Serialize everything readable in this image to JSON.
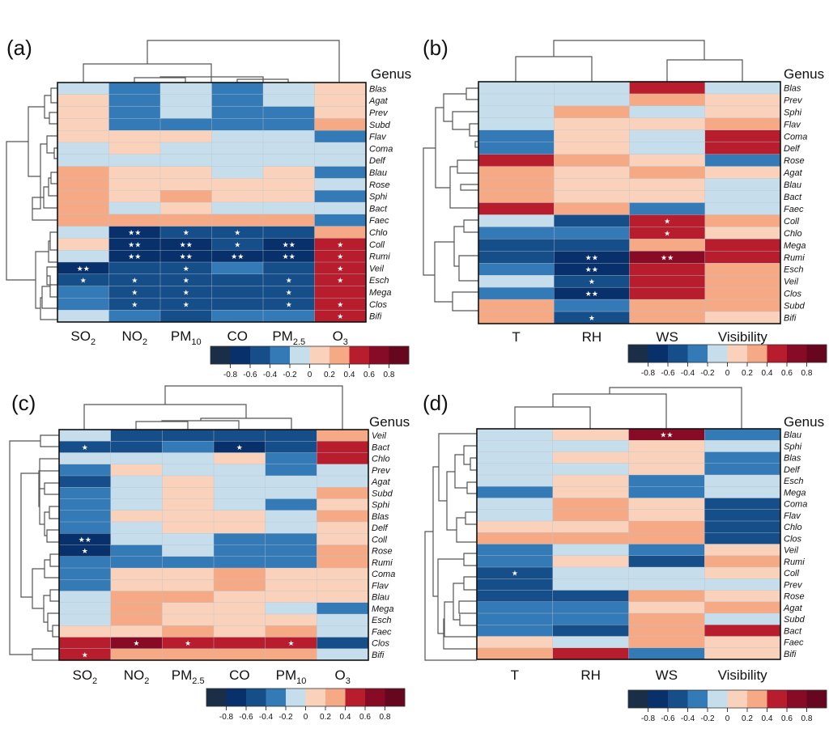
{
  "chart_data": [
    {
      "type": "heatmap",
      "panel_label": "(a)",
      "genus_title": "Genus",
      "columns": [
        {
          "base": "SO",
          "sub": "2"
        },
        {
          "base": "NO",
          "sub": "2"
        },
        {
          "base": "PM",
          "sub": "10"
        },
        {
          "base": "CO",
          "sub": ""
        },
        {
          "base": "PM",
          "sub": "2.5"
        },
        {
          "base": "O",
          "sub": "3"
        }
      ],
      "rows": [
        "Blas",
        "Agat",
        "Prev",
        "Subd",
        "Flav",
        "Coma",
        "Delf",
        "Blau",
        "Rose",
        "Sphi",
        "Bact",
        "Faec",
        "Chlo",
        "Coll",
        "Rumi",
        "Veil",
        "Esch",
        "Mega",
        "Clos",
        "Bifi"
      ],
      "values": [
        [
          -0.1,
          -0.3,
          -0.1,
          -0.3,
          -0.1,
          0.1
        ],
        [
          0.1,
          -0.3,
          -0.1,
          -0.3,
          -0.1,
          0.1
        ],
        [
          0.1,
          -0.3,
          -0.1,
          -0.3,
          -0.3,
          0.1
        ],
        [
          0.1,
          -0.3,
          -0.3,
          -0.3,
          -0.3,
          0.3
        ],
        [
          0.1,
          0.1,
          0.1,
          -0.1,
          -0.1,
          -0.3
        ],
        [
          -0.1,
          0.1,
          -0.1,
          -0.1,
          -0.1,
          -0.1
        ],
        [
          -0.1,
          -0.1,
          -0.1,
          -0.1,
          -0.1,
          -0.1
        ],
        [
          0.3,
          0.1,
          0.1,
          -0.1,
          0.1,
          -0.3
        ],
        [
          0.3,
          0.1,
          0.1,
          0.1,
          0.1,
          -0.1
        ],
        [
          0.3,
          0.1,
          0.3,
          0.1,
          0.1,
          -0.3
        ],
        [
          0.3,
          -0.1,
          0.1,
          -0.1,
          -0.1,
          -0.1
        ],
        [
          0.3,
          0.3,
          0.3,
          0.3,
          0.3,
          -0.3
        ],
        [
          -0.1,
          -0.7,
          -0.5,
          -0.5,
          -0.5,
          0.3
        ],
        [
          0.1,
          -0.7,
          -0.7,
          -0.5,
          -0.7,
          0.5
        ],
        [
          -0.1,
          -0.7,
          -0.7,
          -0.7,
          -0.7,
          0.5
        ],
        [
          -0.7,
          -0.5,
          -0.5,
          -0.3,
          -0.5,
          0.5
        ],
        [
          -0.5,
          -0.5,
          -0.5,
          -0.5,
          -0.5,
          0.5
        ],
        [
          -0.3,
          -0.5,
          -0.5,
          -0.5,
          -0.5,
          0.5
        ],
        [
          -0.3,
          -0.5,
          -0.5,
          -0.5,
          -0.5,
          0.5
        ],
        [
          -0.1,
          -0.3,
          -0.5,
          -0.3,
          -0.3,
          0.5
        ]
      ],
      "significance": [
        [
          "",
          "",
          "",
          "",
          "",
          ""
        ],
        [
          "",
          "",
          "",
          "",
          "",
          ""
        ],
        [
          "",
          "",
          "",
          "",
          "",
          ""
        ],
        [
          "",
          "",
          "",
          "",
          "",
          ""
        ],
        [
          "",
          "",
          "",
          "",
          "",
          ""
        ],
        [
          "",
          "",
          "",
          "",
          "",
          ""
        ],
        [
          "",
          "",
          "",
          "",
          "",
          ""
        ],
        [
          "",
          "",
          "",
          "",
          "",
          ""
        ],
        [
          "",
          "",
          "",
          "",
          "",
          ""
        ],
        [
          "",
          "",
          "",
          "",
          "",
          ""
        ],
        [
          "",
          "",
          "",
          "",
          "",
          ""
        ],
        [
          "",
          "",
          "",
          "",
          "",
          ""
        ],
        [
          "",
          "**",
          "*",
          "*",
          "",
          ""
        ],
        [
          "",
          "**",
          "**",
          "*",
          "**",
          "*"
        ],
        [
          "",
          "**",
          "**",
          "**",
          "**",
          "*"
        ],
        [
          "**",
          "",
          "*",
          "",
          "",
          "*"
        ],
        [
          "*",
          "*",
          "*",
          "",
          "*",
          "*"
        ],
        [
          "",
          "*",
          "*",
          "",
          "*",
          ""
        ],
        [
          "",
          "*",
          "*",
          "",
          "*",
          "*"
        ],
        [
          "",
          "",
          "",
          "",
          "",
          "*"
        ]
      ],
      "legend": {
        "ticks": [
          "-0.8",
          "-0.6",
          "-0.4",
          "-0.2",
          "0",
          "0.2",
          "0.4",
          "0.6",
          "0.8"
        ],
        "range": [
          -1,
          1
        ]
      }
    },
    {
      "type": "heatmap",
      "panel_label": "(b)",
      "genus_title": "Genus",
      "columns": [
        {
          "base": "T",
          "sub": ""
        },
        {
          "base": "RH",
          "sub": ""
        },
        {
          "base": "WS",
          "sub": ""
        },
        {
          "base": "Visibility",
          "sub": ""
        }
      ],
      "rows": [
        "Blas",
        "Prev",
        "Sphi",
        "Flav",
        "Coma",
        "Delf",
        "Rose",
        "Agat",
        "Blau",
        "Bact",
        "Faec",
        "Coll",
        "Chlo",
        "Mega",
        "Rumi",
        "Esch",
        "Veil",
        "Clos",
        "Subd",
        "Bifi"
      ],
      "values": [
        [
          -0.1,
          -0.1,
          0.5,
          -0.1
        ],
        [
          -0.1,
          -0.1,
          0.3,
          0.1
        ],
        [
          -0.1,
          0.3,
          -0.1,
          0.1
        ],
        [
          -0.1,
          0.1,
          0.1,
          0.3
        ],
        [
          -0.3,
          0.1,
          -0.1,
          0.5
        ],
        [
          -0.3,
          0.1,
          -0.1,
          0.5
        ],
        [
          0.5,
          0.3,
          0.1,
          -0.3
        ],
        [
          0.3,
          0.1,
          0.3,
          0.1
        ],
        [
          0.3,
          0.1,
          0.1,
          -0.1
        ],
        [
          0.3,
          0.1,
          0.1,
          -0.1
        ],
        [
          0.5,
          0.3,
          -0.3,
          -0.1
        ],
        [
          -0.1,
          -0.5,
          0.5,
          0.3
        ],
        [
          -0.3,
          -0.3,
          0.5,
          0.1
        ],
        [
          -0.5,
          -0.5,
          0.3,
          0.5
        ],
        [
          -0.5,
          -0.7,
          0.7,
          0.5
        ],
        [
          -0.3,
          -0.7,
          0.5,
          0.3
        ],
        [
          -0.1,
          -0.5,
          0.5,
          0.3
        ],
        [
          -0.3,
          -0.7,
          0.5,
          0.3
        ],
        [
          0.3,
          -0.3,
          0.3,
          0.3
        ],
        [
          0.3,
          -0.5,
          0.3,
          0.1
        ]
      ],
      "significance": [
        [
          "",
          "",
          "",
          ""
        ],
        [
          "",
          "",
          "",
          ""
        ],
        [
          "",
          "",
          "",
          ""
        ],
        [
          "",
          "",
          "",
          ""
        ],
        [
          "",
          "",
          "",
          ""
        ],
        [
          "",
          "",
          "",
          ""
        ],
        [
          "",
          "",
          "",
          ""
        ],
        [
          "",
          "",
          "",
          ""
        ],
        [
          "",
          "",
          "",
          ""
        ],
        [
          "",
          "",
          "",
          ""
        ],
        [
          "",
          "",
          "",
          ""
        ],
        [
          "",
          "",
          "*",
          ""
        ],
        [
          "",
          "",
          "*",
          ""
        ],
        [
          "",
          "",
          "",
          ""
        ],
        [
          "",
          "**",
          "**",
          ""
        ],
        [
          "",
          "**",
          "",
          ""
        ],
        [
          "",
          "*",
          "",
          ""
        ],
        [
          "",
          "**",
          "",
          ""
        ],
        [
          "",
          "",
          "",
          ""
        ],
        [
          "",
          "*",
          "",
          ""
        ]
      ],
      "legend": {
        "ticks": [
          "-0.8",
          "-0.6",
          "-0.4",
          "-0.2",
          "0",
          "0.2",
          "0.4",
          "0.6",
          "0.8"
        ],
        "range": [
          -1,
          1
        ]
      }
    },
    {
      "type": "heatmap",
      "panel_label": "(c)",
      "genus_title": "Genus",
      "columns": [
        {
          "base": "SO",
          "sub": "2"
        },
        {
          "base": "NO",
          "sub": "2"
        },
        {
          "base": "PM",
          "sub": "2.5"
        },
        {
          "base": "CO",
          "sub": ""
        },
        {
          "base": "PM",
          "sub": "10"
        },
        {
          "base": "O",
          "sub": "3"
        }
      ],
      "rows": [
        "Veil",
        "Bact",
        "Chlo",
        "Prev",
        "Agat",
        "Subd",
        "Sphi",
        "Blas",
        "Delf",
        "Coll",
        "Rose",
        "Rumi",
        "Coma",
        "Flav",
        "Blau",
        "Mega",
        "Esch",
        "Faec",
        "Clos",
        "Bifi"
      ],
      "values": [
        [
          -0.1,
          -0.5,
          -0.5,
          -0.5,
          -0.5,
          0.3
        ],
        [
          -0.5,
          -0.5,
          -0.3,
          -0.7,
          -0.5,
          0.5
        ],
        [
          -0.1,
          -0.1,
          -0.1,
          0.1,
          -0.3,
          0.5
        ],
        [
          -0.3,
          0.1,
          -0.1,
          -0.1,
          -0.3,
          -0.1
        ],
        [
          -0.5,
          -0.1,
          0.1,
          -0.1,
          -0.1,
          -0.1
        ],
        [
          -0.3,
          -0.1,
          0.1,
          -0.1,
          -0.1,
          0.3
        ],
        [
          -0.3,
          -0.1,
          0.1,
          -0.1,
          -0.3,
          0.1
        ],
        [
          -0.3,
          0.1,
          0.1,
          0.1,
          -0.1,
          0.3
        ],
        [
          -0.3,
          -0.1,
          0.1,
          0.1,
          -0.1,
          0.1
        ],
        [
          -0.7,
          -0.1,
          -0.1,
          -0.3,
          -0.3,
          0.1
        ],
        [
          -0.7,
          -0.3,
          -0.1,
          -0.3,
          -0.3,
          0.3
        ],
        [
          -0.3,
          -0.3,
          -0.3,
          -0.3,
          -0.3,
          0.3
        ],
        [
          -0.3,
          0.1,
          0.1,
          0.3,
          0.1,
          0.1
        ],
        [
          -0.3,
          0.1,
          0.1,
          0.3,
          0.1,
          0.1
        ],
        [
          -0.1,
          0.3,
          0.3,
          0.1,
          0.1,
          0.1
        ],
        [
          -0.1,
          0.3,
          0.1,
          0.1,
          -0.1,
          -0.3
        ],
        [
          -0.1,
          0.3,
          0.1,
          0.1,
          0.1,
          -0.1
        ],
        [
          0.1,
          0.1,
          0.3,
          0.1,
          0.3,
          -0.1
        ],
        [
          0.5,
          0.7,
          0.5,
          0.5,
          0.5,
          -0.5
        ],
        [
          0.5,
          0.3,
          0.3,
          0.3,
          0.3,
          -0.1
        ]
      ],
      "significance": [
        [
          "",
          "",
          "",
          "",
          "",
          ""
        ],
        [
          "*",
          "",
          "",
          "*",
          "",
          ""
        ],
        [
          "",
          "",
          "",
          "",
          "",
          ""
        ],
        [
          "",
          "",
          "",
          "",
          "",
          ""
        ],
        [
          "",
          "",
          "",
          "",
          "",
          ""
        ],
        [
          "",
          "",
          "",
          "",
          "",
          ""
        ],
        [
          "",
          "",
          "",
          "",
          "",
          ""
        ],
        [
          "",
          "",
          "",
          "",
          "",
          ""
        ],
        [
          "",
          "",
          "",
          "",
          "",
          ""
        ],
        [
          "**",
          "",
          "",
          "",
          "",
          ""
        ],
        [
          "*",
          "",
          "",
          "",
          "",
          ""
        ],
        [
          "",
          "",
          "",
          "",
          "",
          ""
        ],
        [
          "",
          "",
          "",
          "",
          "",
          ""
        ],
        [
          "",
          "",
          "",
          "",
          "",
          ""
        ],
        [
          "",
          "",
          "",
          "",
          "",
          ""
        ],
        [
          "",
          "",
          "",
          "",
          "",
          ""
        ],
        [
          "",
          "",
          "",
          "",
          "",
          ""
        ],
        [
          "",
          "",
          "",
          "",
          "",
          ""
        ],
        [
          "",
          "*",
          "*",
          "",
          "*",
          ""
        ],
        [
          "*",
          "",
          "",
          "",
          "",
          ""
        ]
      ],
      "legend": {
        "ticks": [
          "-0.8",
          "-0.6",
          "-0.4",
          "-0.2",
          "0",
          "0.2",
          "0.4",
          "0.6",
          "0.8"
        ],
        "range": [
          -1,
          1
        ]
      }
    },
    {
      "type": "heatmap",
      "panel_label": "(d)",
      "genus_title": "Genus",
      "columns": [
        {
          "base": "T",
          "sub": ""
        },
        {
          "base": "RH",
          "sub": ""
        },
        {
          "base": "WS",
          "sub": ""
        },
        {
          "base": "Visibility",
          "sub": ""
        }
      ],
      "rows": [
        "Blau",
        "Sphi",
        "Blas",
        "Delf",
        "Esch",
        "Mega",
        "Coma",
        "Flav",
        "Chlo",
        "Clos",
        "Veil",
        "Rumi",
        "Coll",
        "Prev",
        "Rose",
        "Agat",
        "Subd",
        "Bact",
        "Faec",
        "Bifi"
      ],
      "values": [
        [
          -0.1,
          0.1,
          0.7,
          -0.3
        ],
        [
          -0.1,
          -0.1,
          0.1,
          -0.1
        ],
        [
          -0.1,
          0.1,
          0.1,
          -0.3
        ],
        [
          -0.1,
          -0.1,
          0.1,
          -0.3
        ],
        [
          -0.1,
          0.1,
          -0.3,
          -0.1
        ],
        [
          -0.3,
          0.1,
          -0.3,
          -0.1
        ],
        [
          -0.1,
          0.3,
          0.1,
          -0.5
        ],
        [
          -0.1,
          0.3,
          0.1,
          -0.5
        ],
        [
          0.1,
          0.1,
          0.3,
          -0.5
        ],
        [
          0.3,
          0.3,
          0.3,
          -0.5
        ],
        [
          -0.3,
          -0.1,
          -0.3,
          0.1
        ],
        [
          -0.3,
          0.1,
          -0.5,
          0.3
        ],
        [
          -0.5,
          -0.1,
          -0.1,
          0.1
        ],
        [
          -0.5,
          -0.1,
          -0.1,
          -0.1
        ],
        [
          -0.5,
          -0.5,
          0.3,
          0.1
        ],
        [
          -0.3,
          -0.3,
          0.1,
          0.3
        ],
        [
          -0.3,
          -0.3,
          0.3,
          -0.1
        ],
        [
          -0.3,
          -0.5,
          0.3,
          0.5
        ],
        [
          0.1,
          -0.1,
          0.3,
          0.1
        ],
        [
          0.3,
          0.5,
          -0.3,
          0.1
        ]
      ],
      "significance": [
        [
          "",
          "",
          "**",
          ""
        ],
        [
          "",
          "",
          "",
          ""
        ],
        [
          "",
          "",
          "",
          ""
        ],
        [
          "",
          "",
          "",
          ""
        ],
        [
          "",
          "",
          "",
          ""
        ],
        [
          "",
          "",
          "",
          ""
        ],
        [
          "",
          "",
          "",
          ""
        ],
        [
          "",
          "",
          "",
          ""
        ],
        [
          "",
          "",
          "",
          ""
        ],
        [
          "",
          "",
          "",
          ""
        ],
        [
          "",
          "",
          "",
          ""
        ],
        [
          "",
          "",
          "",
          ""
        ],
        [
          "*",
          "",
          "",
          ""
        ],
        [
          "",
          "",
          "",
          ""
        ],
        [
          "",
          "",
          "",
          ""
        ],
        [
          "",
          "",
          "",
          ""
        ],
        [
          "",
          "",
          "",
          ""
        ],
        [
          "",
          "",
          "",
          ""
        ],
        [
          "",
          "",
          "",
          ""
        ],
        [
          "",
          "",
          "",
          ""
        ]
      ],
      "legend": {
        "ticks": [
          "-0.8",
          "-0.6",
          "-0.4",
          "-0.2",
          "0",
          "0.2",
          "0.4",
          "0.6",
          "0.8"
        ],
        "range": [
          -1,
          1
        ]
      }
    }
  ],
  "colorscale": {
    "bins": [
      -1,
      -0.8,
      -0.6,
      -0.4,
      -0.2,
      0,
      0.2,
      0.4,
      0.6,
      0.8,
      1
    ],
    "colors": [
      "#1b2e48",
      "#08306b",
      "#164e8a",
      "#337ab7",
      "#c6deeb",
      "#fad2bc",
      "#f6a985",
      "#b81d2d",
      "#870b24",
      "#66061f"
    ]
  }
}
